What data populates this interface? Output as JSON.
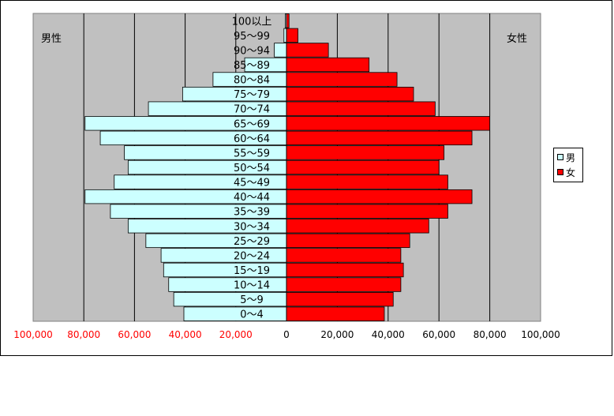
{
  "chart_data": {
    "type": "bar",
    "orientation": "horizontal-population-pyramid",
    "categories": [
      "100以上",
      "95～99",
      "90～94",
      "85～89",
      "80～84",
      "75～79",
      "70～74",
      "65～69",
      "60～64",
      "55～59",
      "50～54",
      "45～49",
      "40～44",
      "35～39",
      "30～34",
      "25～29",
      "20～24",
      "15～19",
      "10～14",
      "5～9",
      "0～4"
    ],
    "series": [
      {
        "name": "男",
        "color": "#ccffff",
        "values": [
          500,
          1000,
          4800,
          16500,
          29000,
          41000,
          54500,
          79500,
          73500,
          64000,
          62500,
          68000,
          79500,
          69500,
          62500,
          55500,
          49500,
          48500,
          46500,
          44500,
          40500
        ]
      },
      {
        "name": "女",
        "color": "#ff0000",
        "values": [
          1000,
          4500,
          16500,
          32500,
          43500,
          50000,
          58500,
          80000,
          73000,
          62000,
          60000,
          63500,
          73000,
          63500,
          56000,
          48500,
          45000,
          46000,
          45000,
          42000,
          38500
        ]
      }
    ],
    "left_axis_label": "男性",
    "right_axis_label": "女性",
    "xticks_left": [
      "100,000",
      "80,000",
      "60,000",
      "40,000",
      "20,000",
      "0"
    ],
    "xticks_right": [
      "20,000",
      "40,000",
      "60,000",
      "80,000",
      "100,000"
    ],
    "xlim": [
      -100000,
      100000
    ],
    "plot_background": "#c0c0c0",
    "left_tick_color": "#ff0000",
    "grid": true,
    "legend_position": "right"
  }
}
